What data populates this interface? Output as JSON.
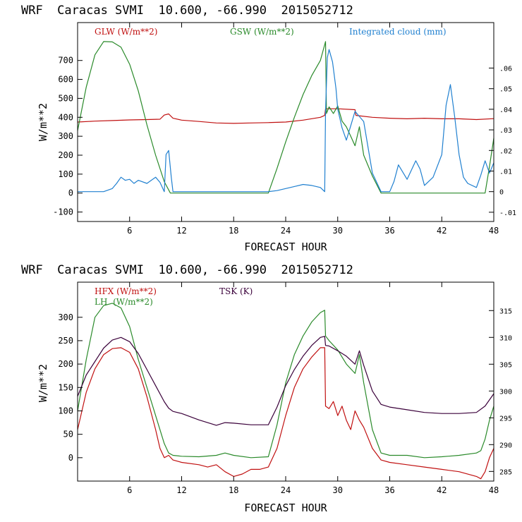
{
  "chart_data": [
    {
      "type": "line",
      "title": "WRF  Caracas SVMI  10.600, -66.990  2015052712",
      "xlabel": "FORECAST HOUR",
      "ylabel": "W/m**2",
      "xlim": [
        0,
        48
      ],
      "xticks": [
        6,
        12,
        18,
        24,
        30,
        36,
        42,
        48
      ],
      "ylim": [
        -150,
        900
      ],
      "yticks": [
        -100,
        0,
        100,
        200,
        300,
        400,
        500,
        600,
        700
      ],
      "y2lim": [
        -0.0145,
        0.0821
      ],
      "y2ticks": [
        -0.01,
        0,
        0.01,
        0.02,
        0.03,
        0.04,
        0.05,
        0.06
      ],
      "y2ticklabels": [
        "-.01",
        "0",
        ".01",
        ".02",
        ".03",
        ".04",
        ".05",
        ".06"
      ],
      "series": [
        {
          "name": "GLW (W/m**2)",
          "color": "#c01010",
          "axis": "left",
          "x": [
            0,
            2,
            4,
            6,
            8,
            9.5,
            10,
            10.5,
            11,
            12,
            14,
            16,
            18,
            20,
            22,
            24,
            26,
            28,
            28.5,
            28.6,
            30,
            32,
            32.1,
            34,
            36,
            38,
            40,
            42,
            44,
            46,
            48
          ],
          "y": [
            375,
            380,
            383,
            386,
            388,
            390,
            412,
            418,
            395,
            385,
            378,
            370,
            368,
            370,
            372,
            375,
            385,
            400,
            410,
            445,
            445,
            440,
            410,
            400,
            395,
            392,
            395,
            392,
            392,
            388,
            393
          ]
        },
        {
          "name": "GSW (W/m**2)",
          "color": "#2a8a2a",
          "axis": "left",
          "x": [
            0,
            1,
            2,
            3,
            4,
            5,
            6,
            7,
            8,
            9,
            10,
            10.7,
            11,
            22,
            23,
            24,
            25,
            26,
            27,
            28,
            28.6,
            28.7,
            29,
            29.5,
            30,
            30.5,
            31,
            31.5,
            32,
            32.5,
            33,
            34,
            35,
            47,
            47.5,
            48
          ],
          "y": [
            330,
            560,
            730,
            800,
            798,
            770,
            680,
            540,
            360,
            200,
            60,
            0,
            0,
            0,
            130,
            270,
            400,
            520,
            620,
            700,
            800,
            420,
            455,
            420,
            460,
            380,
            350,
            300,
            250,
            350,
            200,
            90,
            0,
            0,
            140,
            290
          ]
        },
        {
          "name": "Integrated cloud (mm)",
          "color": "#2080d0",
          "axis": "right",
          "x": [
            0,
            1,
            2,
            3,
            4,
            4.5,
            5,
            5.5,
            6,
            6.5,
            7,
            8,
            9,
            9.5,
            10,
            10.2,
            10.5,
            10.8,
            11,
            12,
            14,
            16,
            18,
            20,
            22,
            23,
            24,
            25,
            26,
            27,
            28,
            28.5,
            28.6,
            28.8,
            29,
            29.4,
            29.8,
            30,
            30.5,
            31,
            31.5,
            32,
            33,
            34,
            35,
            36,
            36.5,
            37,
            38,
            39,
            39.5,
            40,
            41,
            42,
            42.5,
            43,
            43.5,
            44,
            44.5,
            45,
            46,
            46.5,
            47,
            47.5,
            48
          ],
          "y": [
            0,
            0,
            0,
            0,
            0.0015,
            0.004,
            0.007,
            0.0055,
            0.006,
            0.004,
            0.0055,
            0.004,
            0.007,
            0.0045,
            0,
            0.018,
            0.02,
            0.007,
            0,
            0,
            0,
            0,
            0,
            0,
            0,
            0.0005,
            0.0015,
            0.0025,
            0.0035,
            0.003,
            0.002,
            0,
            0.039,
            0.065,
            0.069,
            0.063,
            0.05,
            0.04,
            0.031,
            0.025,
            0.032,
            0.039,
            0.034,
            0.009,
            0,
            0,
            0.005,
            0.013,
            0.006,
            0.015,
            0.011,
            0.003,
            0.007,
            0.018,
            0.042,
            0.052,
            0.036,
            0.018,
            0.007,
            0.004,
            0.002,
            0.008,
            0.015,
            0.009,
            0.014
          ]
        }
      ],
      "legend": {
        "glw": "GLW (W/m**2)",
        "gsw": "GSW (W/m**2)",
        "cloud": "Integrated cloud (mm)"
      }
    },
    {
      "type": "line",
      "title": "WRF  Caracas SVMI  10.600, -66.990  2015052712",
      "xlabel": "FORECAST HOUR",
      "ylabel": "W/m**2",
      "xlim": [
        0,
        48
      ],
      "xticks": [
        6,
        12,
        18,
        24,
        30,
        36,
        42,
        48
      ],
      "ylim": [
        -50,
        375
      ],
      "yticks": [
        0,
        50,
        100,
        150,
        200,
        250,
        300
      ],
      "y2lim": [
        283.2,
        320.3
      ],
      "y2ticks": [
        285,
        290,
        295,
        300,
        305,
        310,
        315
      ],
      "y2ticklabels": [
        "285",
        "290",
        "295",
        "300",
        "305",
        "310",
        "315"
      ],
      "series": [
        {
          "name": "HFX (W/m**2)",
          "color": "#c01010",
          "axis": "left",
          "x": [
            0,
            1,
            2,
            3,
            4,
            5,
            6,
            7,
            8,
            9,
            9.5,
            10,
            10.5,
            11,
            12,
            14,
            15,
            16,
            17,
            18,
            19,
            20,
            21,
            22,
            23,
            24,
            25,
            26,
            27,
            28,
            28.5,
            28.6,
            29,
            29.5,
            30,
            30.5,
            31,
            31.5,
            32,
            32.5,
            33,
            34,
            35,
            36,
            38,
            40,
            42,
            44,
            46,
            46.5,
            47,
            47.5,
            48
          ],
          "y": [
            60,
            140,
            190,
            220,
            233,
            235,
            225,
            190,
            130,
            60,
            20,
            0,
            5,
            -5,
            -10,
            -15,
            -20,
            -15,
            -30,
            -40,
            -35,
            -25,
            -25,
            -20,
            20,
            90,
            150,
            190,
            215,
            235,
            235,
            110,
            105,
            120,
            90,
            110,
            80,
            60,
            100,
            80,
            65,
            20,
            -5,
            -10,
            -15,
            -20,
            -25,
            -30,
            -40,
            -45,
            -30,
            0,
            20
          ]
        },
        {
          "name": "LH (W/m**2)",
          "color": "#2a8a2a",
          "axis": "left",
          "x": [
            0,
            1,
            2,
            3,
            4,
            5,
            6,
            7,
            8,
            9,
            10,
            10.5,
            11,
            12,
            14,
            16,
            17,
            18,
            20,
            22,
            23,
            24,
            25,
            26,
            27,
            28,
            28.5,
            28.6,
            29,
            30,
            31,
            32,
            32.5,
            33,
            34,
            35,
            36,
            38,
            40,
            42,
            44,
            46,
            46.5,
            47,
            47.5,
            48
          ],
          "y": [
            100,
            210,
            300,
            325,
            330,
            320,
            280,
            210,
            150,
            90,
            30,
            10,
            5,
            3,
            2,
            5,
            10,
            5,
            0,
            2,
            70,
            160,
            220,
            260,
            290,
            310,
            315,
            260,
            250,
            230,
            200,
            180,
            220,
            160,
            60,
            10,
            5,
            5,
            0,
            2,
            5,
            10,
            15,
            40,
            80,
            110
          ]
        },
        {
          "name": "TSK (K)",
          "color": "#3a003a",
          "axis": "right",
          "x": [
            0,
            1,
            2,
            3,
            4,
            5,
            6,
            7,
            8,
            9,
            10,
            10.5,
            11,
            12,
            14,
            16,
            17,
            18,
            20,
            22,
            23,
            24,
            25,
            26,
            27,
            28,
            28.5,
            28.6,
            29,
            30,
            31,
            32,
            32.5,
            33,
            34,
            35,
            36,
            38,
            40,
            42,
            44,
            46,
            47,
            48
          ],
          "y": [
            299,
            303,
            305.5,
            308,
            309.5,
            310,
            309.2,
            307,
            304,
            301,
            298,
            296.8,
            296.2,
            295.8,
            294.6,
            293.6,
            294.1,
            294,
            293.7,
            293.7,
            297,
            301,
            304,
            306.5,
            308.5,
            310,
            310.2,
            308.5,
            308.4,
            307.5,
            306.5,
            305,
            307.5,
            304.8,
            300,
            297.5,
            297,
            296.5,
            296,
            295.8,
            295.8,
            296,
            297.2,
            299.5
          ]
        }
      ],
      "legend": {
        "hfx": "HFX (W/m**2)",
        "lh": "LH  (W/m**2)",
        "tsk": "TSK (K)"
      }
    }
  ]
}
